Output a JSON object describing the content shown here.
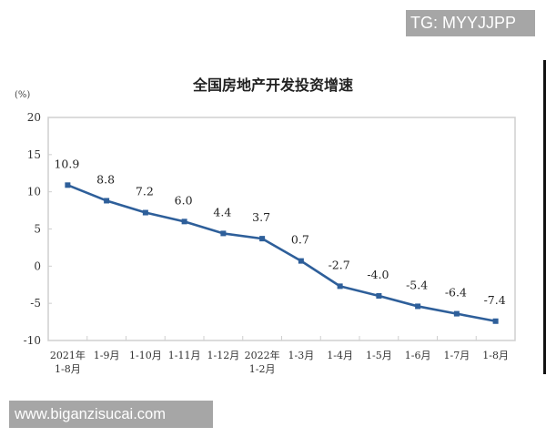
{
  "watermarks": {
    "top": "TG: MYYJJPP",
    "bottom": "www.biganzisucai.com"
  },
  "chart_data": {
    "type": "line",
    "title": "全国房地产开发投资增速",
    "ylabel": "(%)",
    "xlabel": "",
    "ylim": [
      -10,
      20
    ],
    "yticks": [
      20,
      15,
      10,
      5,
      0,
      -5,
      -10
    ],
    "grid": false,
    "legend": null,
    "categories": [
      [
        "2021年",
        "1-8月"
      ],
      [
        "1-9月"
      ],
      [
        "1-10月"
      ],
      [
        "1-11月"
      ],
      [
        "1-12月"
      ],
      [
        "2022年",
        "1-2月"
      ],
      [
        "1-3月"
      ],
      [
        "1-4月"
      ],
      [
        "1-5月"
      ],
      [
        "1-6月"
      ],
      [
        "1-7月"
      ],
      [
        "1-8月"
      ]
    ],
    "series": [
      {
        "name": "全国房地产开发投资增速",
        "color": "#2e5f9a",
        "values": [
          10.9,
          8.8,
          7.2,
          6.0,
          4.4,
          3.7,
          0.7,
          -2.7,
          -4.0,
          -5.4,
          -6.4,
          -7.4
        ],
        "labels": [
          "10.9",
          "8.8",
          "7.2",
          "6.0",
          "4.4",
          "3.7",
          "0.7",
          "-2.7",
          "-4.0",
          "-5.4",
          "-6.4",
          "-7.4"
        ]
      }
    ]
  }
}
